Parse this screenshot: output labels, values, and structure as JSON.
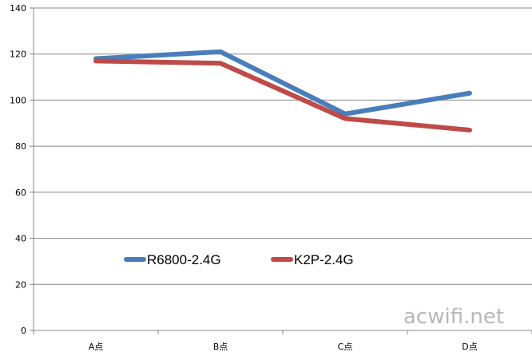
{
  "chart_data": {
    "type": "line",
    "categories": [
      "A点",
      "B点",
      "C点",
      "D点"
    ],
    "series": [
      {
        "name": "R6800-2.4G",
        "values": [
          118,
          121,
          94,
          103
        ],
        "color": "#4a7ebb"
      },
      {
        "name": "K2P-2.4G",
        "values": [
          117,
          116,
          92,
          87
        ],
        "color": "#be4b48"
      }
    ],
    "ylim": [
      0,
      140
    ],
    "yticks": [
      0,
      20,
      40,
      60,
      80,
      100,
      120,
      140
    ],
    "grid": true,
    "legend": "inside-bottom-left",
    "watermark": "acwifi.net"
  }
}
